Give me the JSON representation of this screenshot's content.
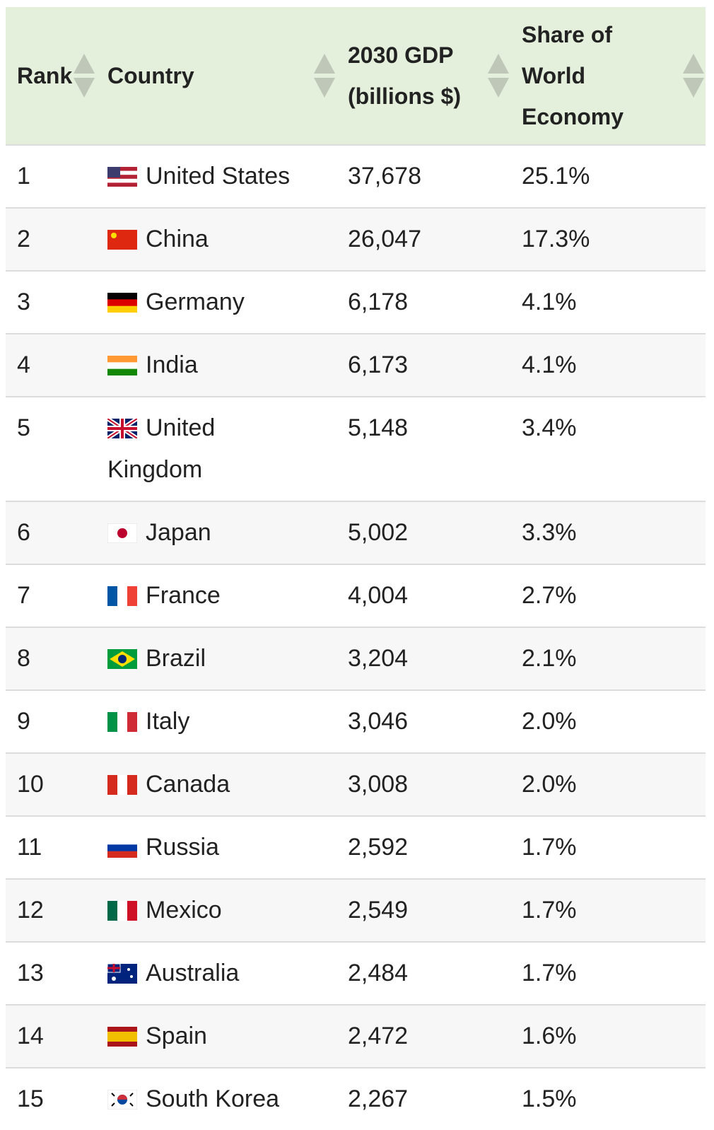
{
  "table": {
    "headers": [
      "Rank",
      "Country",
      "2030 GDP (billions $)",
      "Share of World Economy"
    ],
    "rows": [
      [
        "1",
        "United States",
        "37,678",
        "25.1%"
      ],
      [
        "2",
        "China",
        "26,047",
        "17.3%"
      ],
      [
        "3",
        "Germany",
        "6,178",
        "4.1%"
      ],
      [
        "4",
        "India",
        "6,173",
        "4.1%"
      ],
      [
        "5",
        "United Kingdom",
        "5,148",
        "3.4%"
      ],
      [
        "6",
        "Japan",
        "5,002",
        "3.3%"
      ],
      [
        "7",
        "France",
        "4,004",
        "2.7%"
      ],
      [
        "8",
        "Brazil",
        "3,204",
        "2.1%"
      ],
      [
        "9",
        "Italy",
        "3,046",
        "2.0%"
      ],
      [
        "10",
        "Canada",
        "3,008",
        "2.0%"
      ],
      [
        "11",
        "Russia",
        "2,592",
        "1.7%"
      ],
      [
        "12",
        "Mexico",
        "2,549",
        "1.7%"
      ],
      [
        "13",
        "Australia",
        "2,484",
        "1.7%"
      ],
      [
        "14",
        "Spain",
        "2,472",
        "1.6%"
      ],
      [
        "15",
        "South Korea",
        "2,267",
        "1.5%"
      ]
    ]
  }
}
